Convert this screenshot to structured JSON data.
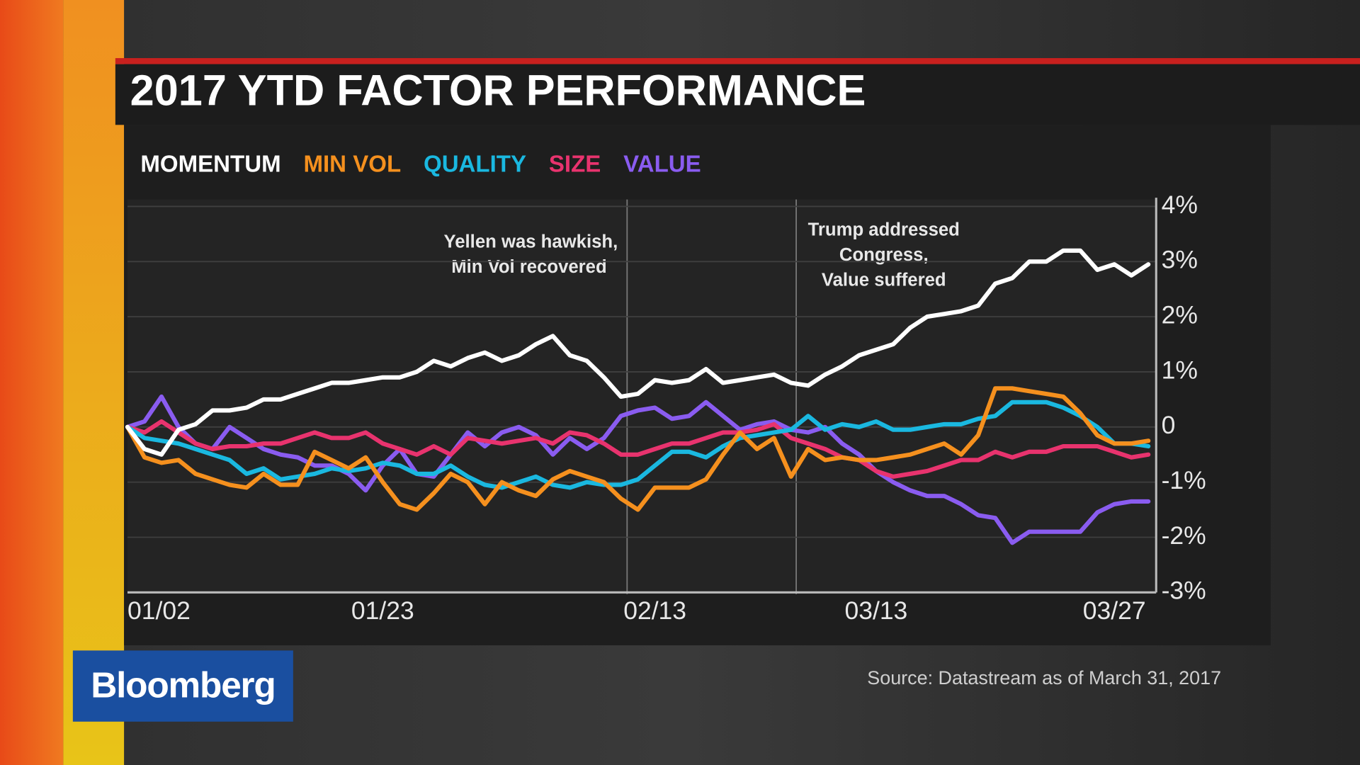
{
  "logo": "Bloomberg",
  "chart_data": {
    "type": "line",
    "title": "2017 YTD FACTOR PERFORMANCE",
    "source": "Source:  Datastream as of March 31, 2017",
    "annotations": [
      "Yellen was hawkish,",
      "Min Vol recovered",
      "Trump addressed",
      "Congress,",
      "Value suffered"
    ],
    "categories": [
      "01/02",
      null,
      null,
      null,
      null,
      null,
      null,
      null,
      null,
      null,
      null,
      null,
      null,
      null,
      null,
      "01/23",
      null,
      null,
      null,
      null,
      null,
      null,
      null,
      null,
      null,
      null,
      null,
      null,
      null,
      null,
      null,
      "02/13",
      null,
      null,
      null,
      null,
      null,
      null,
      null,
      null,
      null,
      null,
      null,
      null,
      "03/13",
      null,
      null,
      null,
      null,
      null,
      null,
      null,
      null,
      null,
      null,
      null,
      null,
      null,
      "03/27",
      null,
      null
    ],
    "ylim": [
      -3,
      4
    ],
    "yticks": [
      {
        "value": 4,
        "label": "4%"
      },
      {
        "value": 3,
        "label": "3%"
      },
      {
        "value": 2,
        "label": "2%"
      },
      {
        "value": 1,
        "label": "1%"
      },
      0,
      {
        "value": -1,
        "label": "-1%"
      },
      {
        "value": -2,
        "label": "-2%"
      },
      {
        "value": -3,
        "label": "-3%"
      }
    ],
    "grid": true,
    "series": [
      {
        "name": "MOMENTUM",
        "color": "#ffffff",
        "values": [
          0,
          -0.4,
          -0.5,
          -0.05,
          0.05,
          0.3,
          0.3,
          0.35,
          0.5,
          0.5,
          0.6,
          0.7,
          0.8,
          0.8,
          0.85,
          0.9,
          0.9,
          1.0,
          1.2,
          1.1,
          1.25,
          1.35,
          1.2,
          1.3,
          1.5,
          1.65,
          1.3,
          1.2,
          0.9,
          0.55,
          0.6,
          0.85,
          0.8,
          0.85,
          1.05,
          0.8,
          0.85,
          0.9,
          0.95,
          0.8,
          0.75,
          0.95,
          1.1,
          1.3,
          1.4,
          1.5,
          1.8,
          2.0,
          2.05,
          2.1,
          2.2,
          2.6,
          2.7,
          3.0,
          3.0,
          3.2,
          3.2,
          2.85,
          2.95,
          2.75,
          2.95
        ]
      },
      {
        "name": "MIN VOL",
        "color": "#f5901e",
        "values": [
          0,
          -0.55,
          -0.65,
          -0.6,
          -0.85,
          -0.95,
          -1.05,
          -1.1,
          -0.85,
          -1.05,
          -1.05,
          -0.45,
          -0.6,
          -0.75,
          -0.55,
          -1.0,
          -1.4,
          -1.5,
          -1.2,
          -0.85,
          -1.0,
          -1.4,
          -1.0,
          -1.15,
          -1.25,
          -0.95,
          -0.8,
          -0.9,
          -1.0,
          -1.3,
          -1.5,
          -1.1,
          -1.1,
          -1.1,
          -0.95,
          -0.5,
          -0.1,
          -0.4,
          -0.2,
          -0.9,
          -0.4,
          -0.6,
          -0.55,
          -0.6,
          -0.6,
          -0.55,
          -0.5,
          -0.4,
          -0.3,
          -0.5,
          -0.15,
          0.7,
          0.7,
          0.65,
          0.6,
          0.55,
          0.25,
          -0.15,
          -0.3,
          -0.3,
          -0.25
        ]
      },
      {
        "name": "QUALITY",
        "color": "#1ab8e0",
        "values": [
          0,
          -0.2,
          -0.25,
          -0.3,
          -0.4,
          -0.5,
          -0.6,
          -0.85,
          -0.75,
          -0.95,
          -0.9,
          -0.85,
          -0.75,
          -0.8,
          -0.75,
          -0.65,
          -0.7,
          -0.85,
          -0.85,
          -0.7,
          -0.9,
          -1.05,
          -1.1,
          -1.0,
          -0.9,
          -1.05,
          -1.1,
          -1.0,
          -1.05,
          -1.05,
          -0.95,
          -0.7,
          -0.45,
          -0.45,
          -0.55,
          -0.35,
          -0.2,
          -0.15,
          -0.1,
          -0.05,
          0.2,
          -0.05,
          0.05,
          0.0,
          0.1,
          -0.05,
          -0.05,
          0.0,
          0.05,
          0.05,
          0.15,
          0.2,
          0.45,
          0.45,
          0.45,
          0.35,
          0.2,
          0.0,
          -0.3,
          -0.3,
          -0.35
        ]
      },
      {
        "name": "SIZE",
        "color": "#e8336e",
        "values": [
          0,
          -0.1,
          0.1,
          -0.1,
          -0.3,
          -0.4,
          -0.35,
          -0.35,
          -0.3,
          -0.3,
          -0.2,
          -0.1,
          -0.2,
          -0.2,
          -0.1,
          -0.3,
          -0.4,
          -0.5,
          -0.35,
          -0.5,
          -0.2,
          -0.25,
          -0.3,
          -0.25,
          -0.2,
          -0.3,
          -0.1,
          -0.15,
          -0.3,
          -0.5,
          -0.5,
          -0.4,
          -0.3,
          -0.3,
          -0.2,
          -0.1,
          -0.1,
          -0.05,
          0.05,
          -0.2,
          -0.3,
          -0.4,
          -0.55,
          -0.6,
          -0.8,
          -0.9,
          -0.85,
          -0.8,
          -0.7,
          -0.6,
          -0.6,
          -0.45,
          -0.55,
          -0.45,
          -0.45,
          -0.35,
          -0.35,
          -0.35,
          -0.45,
          -0.55,
          -0.5
        ]
      },
      {
        "name": "VALUE",
        "color": "#8a5cf0",
        "values": [
          0,
          0.1,
          0.55,
          0.0,
          -0.3,
          -0.4,
          0.0,
          -0.2,
          -0.4,
          -0.5,
          -0.55,
          -0.7,
          -0.7,
          -0.85,
          -1.15,
          -0.7,
          -0.4,
          -0.85,
          -0.9,
          -0.5,
          -0.1,
          -0.35,
          -0.1,
          0.0,
          -0.15,
          -0.5,
          -0.2,
          -0.4,
          -0.2,
          0.2,
          0.3,
          0.35,
          0.15,
          0.2,
          0.45,
          0.2,
          -0.05,
          0.05,
          0.1,
          -0.05,
          -0.1,
          0.0,
          -0.3,
          -0.5,
          -0.8,
          -1.0,
          -1.15,
          -1.25,
          -1.25,
          -1.4,
          -1.6,
          -1.65,
          -2.1,
          -1.9,
          -1.9,
          -1.9,
          -1.9,
          -1.55,
          -1.4,
          -1.35,
          -1.35
        ]
      }
    ]
  }
}
